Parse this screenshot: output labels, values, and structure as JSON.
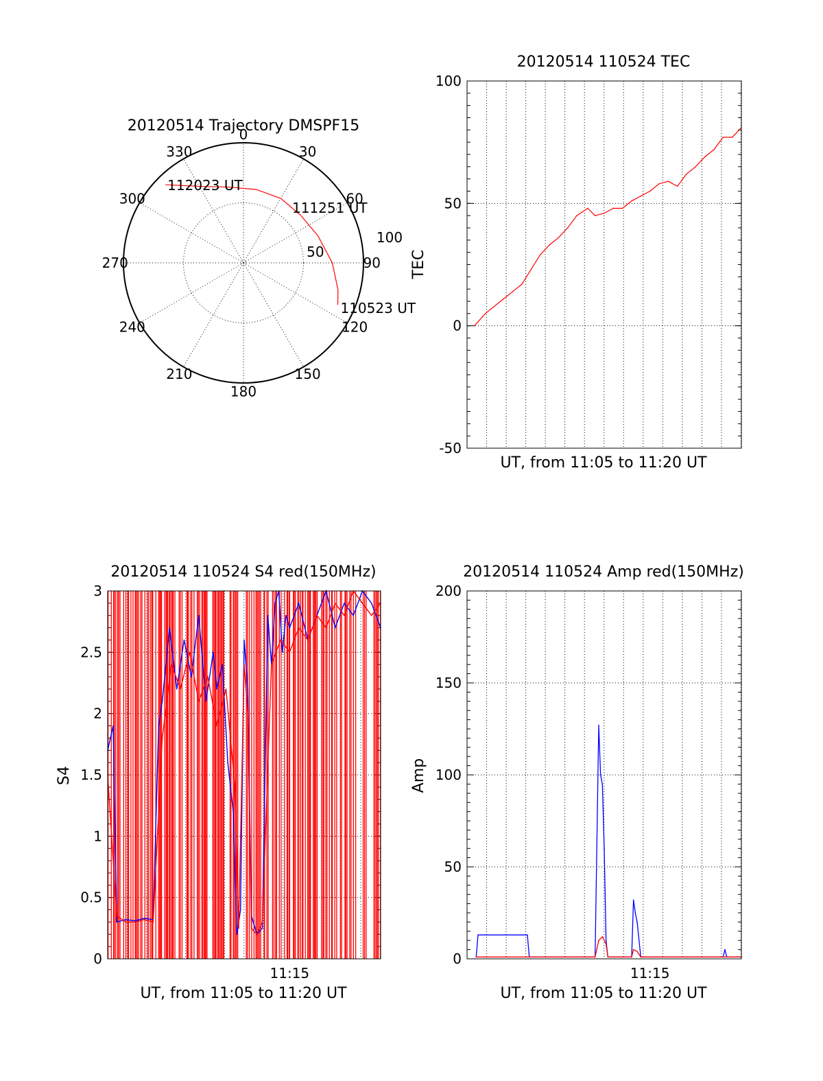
{
  "chart_data": [
    {
      "type": "polar-trajectory",
      "title": "20120514 Trajectory DMSPF15",
      "angle_ticks": [
        "0",
        "30",
        "60",
        "90",
        "120",
        "150",
        "180",
        "210",
        "240",
        "270",
        "300",
        "330"
      ],
      "radial_ticks": [
        "50",
        "100"
      ],
      "annotations": [
        "112023 UT",
        "111251 UT",
        "110523 UT"
      ],
      "trajectory": {
        "color": "#ff0000",
        "points": [
          {
            "azimuth": 315,
            "zenith": 92
          },
          {
            "azimuth": 332,
            "zenith": 72
          },
          {
            "azimuth": 350,
            "zenith": 64
          },
          {
            "azimuth": 10,
            "zenith": 62
          },
          {
            "azimuth": 30,
            "zenith": 62
          },
          {
            "azimuth": 50,
            "zenith": 62
          },
          {
            "azimuth": 70,
            "zenith": 66
          },
          {
            "azimuth": 90,
            "zenith": 74
          },
          {
            "azimuth": 106,
            "zenith": 82
          },
          {
            "azimuth": 114,
            "zenith": 86
          }
        ]
      }
    },
    {
      "type": "line",
      "title": "20120514 110524 TEC",
      "xlabel": "UT, from 11:05 to 11:20 UT",
      "ylabel": "TEC",
      "xlim": [
        0,
        15
      ],
      "ylim": [
        -50,
        100
      ],
      "yticks": [
        "-50",
        "0",
        "50",
        "100"
      ],
      "xgrid_minutes": [
        0.7,
        2.2,
        3.5,
        4.6,
        5.6,
        6.7,
        7.8,
        8.8,
        9.9,
        11,
        12,
        13.1,
        14.1
      ],
      "series": [
        {
          "color": "#ff0000",
          "x": [
            0.4,
            1,
            2,
            2.5,
            3,
            3.5,
            4,
            4.5,
            5,
            5.5,
            6,
            6.6,
            7,
            7.5,
            8,
            8.5,
            9,
            9.5,
            10,
            10.5,
            11,
            11.5,
            12,
            12.5,
            13,
            13.5,
            14,
            14.5,
            15
          ],
          "y": [
            0,
            5,
            11,
            14,
            17,
            23,
            29,
            33,
            36,
            40,
            45,
            48,
            45,
            46,
            48,
            48,
            51,
            53,
            55,
            58,
            59,
            57,
            62,
            65,
            69,
            72,
            77,
            77,
            81
          ]
        }
      ]
    },
    {
      "type": "line",
      "title": "20120514 110524 S4 red(150MHz)",
      "xlabel": "UT, from 11:05 to 11:20 UT",
      "ylabel": "S4",
      "xlim": [
        0,
        15
      ],
      "ylim": [
        0,
        3
      ],
      "yticks": [
        "0",
        "0.5",
        "1",
        "1.5",
        "2",
        "2.5",
        "3"
      ],
      "xticks": [
        {
          "x": 10,
          "label": "11:15"
        }
      ],
      "series": [
        {
          "color": "#0000ff",
          "x": [
            0,
            0.3,
            0.5,
            1,
            1.5,
            2,
            2.5,
            2.8,
            3,
            3.4,
            3.8,
            4.2,
            4.6,
            5,
            5.4,
            5.8,
            6,
            6.3,
            6.6,
            6.9,
            7.1,
            7.3,
            7.5,
            7.7,
            7.9,
            8.2,
            8.5,
            8.8,
            9,
            9.2,
            9.4,
            9.6,
            9.8,
            10,
            10.5,
            11,
            11.5,
            12,
            12.5,
            13,
            13.5,
            14,
            14.5,
            15
          ],
          "y": [
            1.7,
            1.9,
            0.3,
            0.32,
            0.31,
            0.33,
            0.32,
            1.9,
            2.1,
            2.7,
            2.2,
            2.6,
            2.3,
            2.8,
            2.1,
            2.5,
            2.2,
            2.4,
            1.6,
            1.2,
            0.2,
            0.4,
            2.6,
            2.2,
            0.35,
            0.2,
            0.25,
            2.8,
            2.4,
            2.9,
            3,
            2.5,
            2.8,
            2.7,
            2.9,
            2.6,
            2.8,
            3,
            2.7,
            2.9,
            2.8,
            3,
            2.9,
            2.7
          ]
        },
        {
          "color": "#ff0000",
          "x": [
            0,
            0.5,
            1,
            1.5,
            2,
            2.5,
            3,
            3.5,
            4,
            4.5,
            5,
            5.5,
            6,
            6.5,
            7,
            7.2,
            7.5,
            7.7,
            7.9,
            8.2,
            8.5,
            9,
            9.5,
            10,
            10.5,
            11,
            11.5,
            12,
            12.5,
            13,
            13.5,
            14,
            14.5,
            15
          ],
          "y": [
            1.5,
            0.35,
            0.3,
            0.3,
            0.32,
            0.3,
            1.8,
            2.4,
            2.2,
            2.5,
            2.1,
            2.3,
            1.9,
            2.2,
            1.4,
            0.25,
            2.4,
            2.0,
            0.25,
            0.2,
            0.3,
            2.4,
            2.6,
            2.5,
            2.7,
            2.6,
            2.8,
            2.7,
            2.9,
            2.8,
            3,
            2.9,
            2.8,
            2.9
          ]
        }
      ],
      "noise_bands": [
        {
          "color": "#ff0000",
          "x_ranges": [
            [
              0,
              6.4
            ],
            [
              6.7,
              7.2
            ],
            [
              7.6,
              15
            ]
          ],
          "description_values": [
            0,
            3
          ]
        }
      ]
    },
    {
      "type": "line",
      "title": "20120514 110524 Amp red(150MHz)",
      "xlabel": "UT, from 11:05 to 11:20 UT",
      "ylabel": "Amp",
      "xlim": [
        0,
        15
      ],
      "ylim": [
        0,
        200
      ],
      "yticks": [
        "0",
        "50",
        "100",
        "150",
        "200"
      ],
      "xticks": [
        {
          "x": 10,
          "label": "11:15"
        }
      ],
      "series": [
        {
          "color": "#0000ff",
          "x": [
            0.5,
            0.6,
            3.3,
            3.4,
            7,
            7.2,
            7.3,
            7.4,
            7.5,
            7.6,
            7.7,
            8,
            9,
            9.1,
            9.2,
            9.3,
            9.5,
            10,
            12,
            14,
            14.1,
            14.2,
            15
          ],
          "y": [
            1,
            13,
            13,
            1,
            1,
            127,
            100,
            95,
            60,
            10,
            1,
            1,
            1,
            32,
            25,
            20,
            1,
            1,
            1,
            1,
            5,
            1,
            1
          ]
        },
        {
          "color": "#ff0000",
          "x": [
            0.5,
            3.4,
            7,
            7.2,
            7.4,
            7.6,
            7.7,
            9,
            9.1,
            9.3,
            9.5,
            15
          ],
          "y": [
            1,
            1,
            1,
            10,
            12,
            8,
            1,
            1,
            5,
            4,
            1,
            1
          ]
        }
      ]
    }
  ]
}
